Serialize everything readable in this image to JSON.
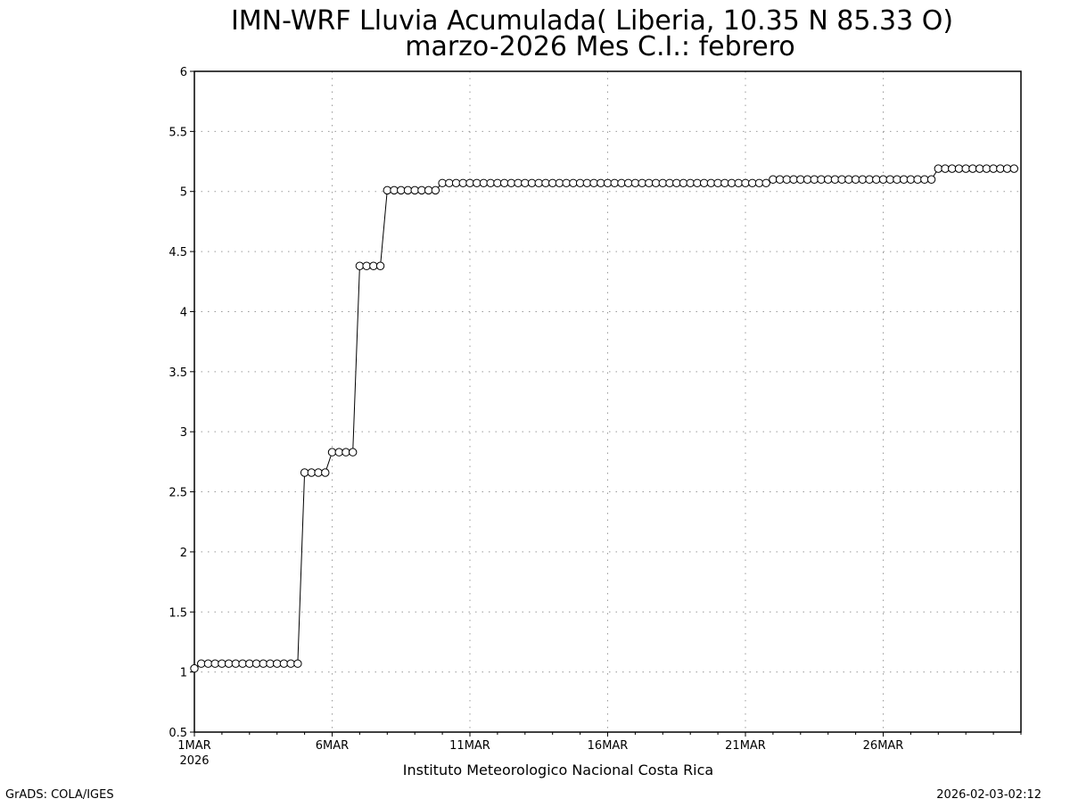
{
  "header": {
    "title": "IMN-WRF  Lluvia Acumulada( Liberia, 10.35  N 85.33  O)",
    "subtitle": "marzo-2026 Mes C.I.: febrero"
  },
  "footer": {
    "institution": "Instituto Meteorologico Nacional Costa Rica",
    "software": "GrADS: COLA/IGES",
    "timestamp": "2026-02-03-02:12"
  },
  "chart_data": {
    "type": "line",
    "title": "IMN-WRF  Lluvia Acumulada( Liberia, 10.35  N 85.33  O)",
    "subtitle": "marzo-2026 Mes C.I.: febrero",
    "xlabel": "",
    "ylabel": "",
    "x_unit": "day of March 2026",
    "xlim": [
      1,
      31
    ],
    "ylim": [
      0.5,
      6
    ],
    "yticks": [
      0.5,
      1,
      1.5,
      2,
      2.5,
      3,
      3.5,
      4,
      4.5,
      5,
      5.5,
      6
    ],
    "xticks": [
      {
        "x": 1,
        "label": "1MAR",
        "sublabel": "2026"
      },
      {
        "x": 6,
        "label": "6MAR"
      },
      {
        "x": 11,
        "label": "11MAR"
      },
      {
        "x": 16,
        "label": "16MAR"
      },
      {
        "x": 21,
        "label": "21MAR"
      },
      {
        "x": 26,
        "label": "26MAR"
      }
    ],
    "grid": true,
    "marker": "open-circle",
    "series": [
      {
        "step_days": 0.25,
        "x_start": 1,
        "values": [
          1.03,
          1.07,
          1.07,
          1.07,
          1.07,
          1.07,
          1.07,
          1.07,
          1.07,
          1.07,
          1.07,
          1.07,
          1.07,
          1.07,
          1.07,
          1.07,
          2.66,
          2.66,
          2.66,
          2.66,
          2.83,
          2.83,
          2.83,
          2.83,
          4.38,
          4.38,
          4.38,
          4.38,
          5.01,
          5.01,
          5.01,
          5.01,
          5.01,
          5.01,
          5.01,
          5.01,
          5.07,
          5.07,
          5.07,
          5.07,
          5.07,
          5.07,
          5.07,
          5.07,
          5.07,
          5.07,
          5.07,
          5.07,
          5.07,
          5.07,
          5.07,
          5.07,
          5.07,
          5.07,
          5.07,
          5.07,
          5.07,
          5.07,
          5.07,
          5.07,
          5.07,
          5.07,
          5.07,
          5.07,
          5.07,
          5.07,
          5.07,
          5.07,
          5.07,
          5.07,
          5.07,
          5.07,
          5.07,
          5.07,
          5.07,
          5.07,
          5.07,
          5.07,
          5.07,
          5.07,
          5.07,
          5.07,
          5.07,
          5.07,
          5.1,
          5.1,
          5.1,
          5.1,
          5.1,
          5.1,
          5.1,
          5.1,
          5.1,
          5.1,
          5.1,
          5.1,
          5.1,
          5.1,
          5.1,
          5.1,
          5.1,
          5.1,
          5.1,
          5.1,
          5.1,
          5.1,
          5.1,
          5.1,
          5.19,
          5.19,
          5.19,
          5.19,
          5.19,
          5.19,
          5.19,
          5.19,
          5.19,
          5.19,
          5.19,
          5.19
        ]
      }
    ]
  }
}
